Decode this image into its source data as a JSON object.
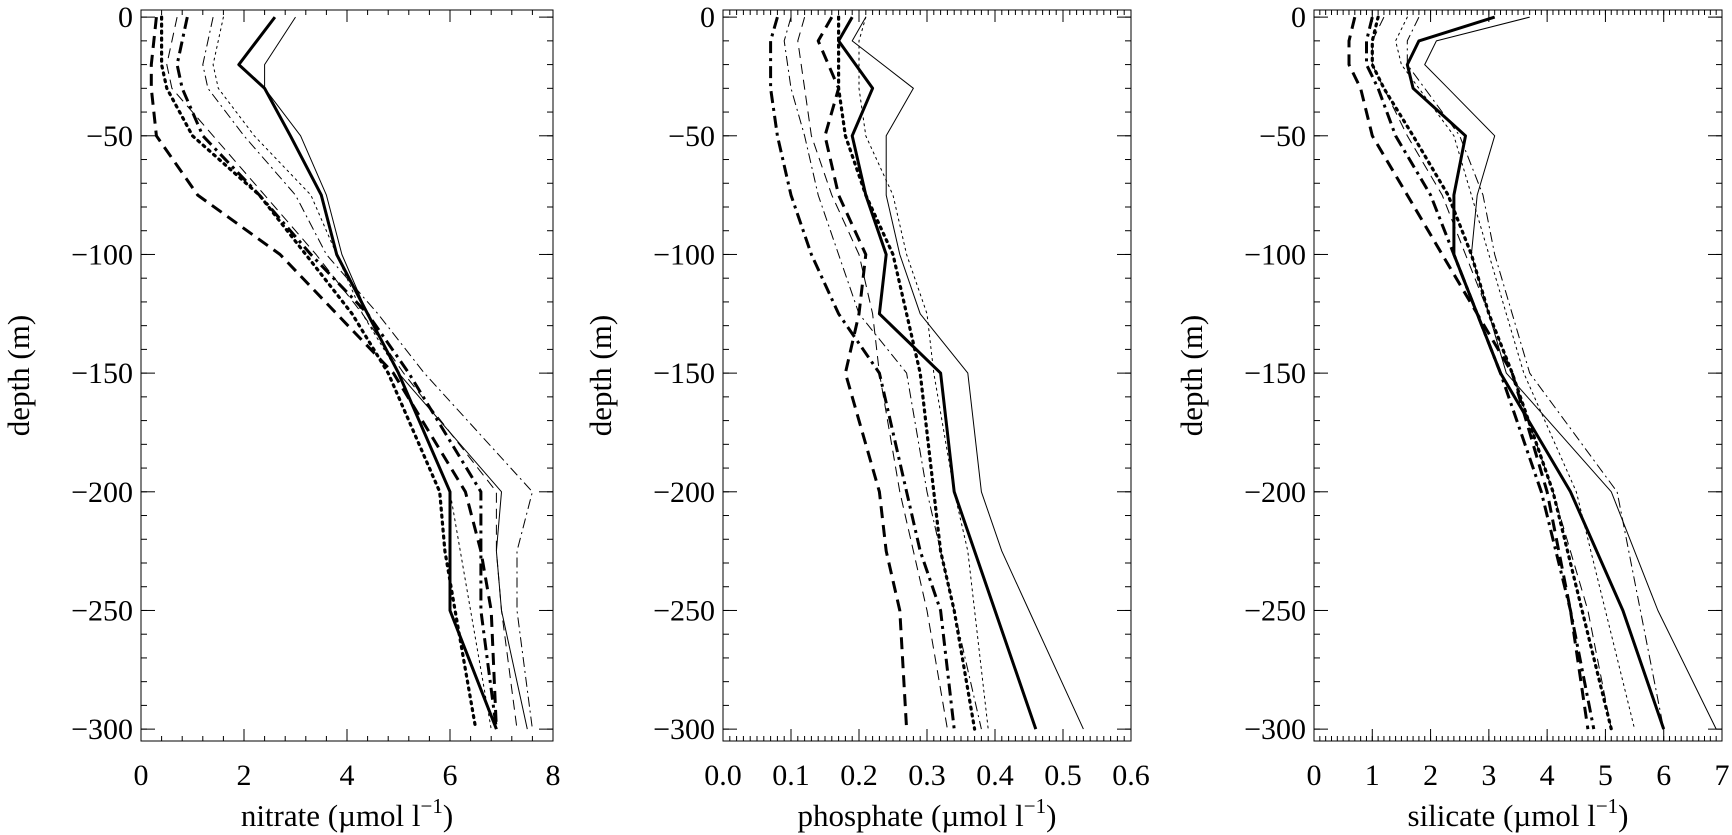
{
  "figure": {
    "panel_count": 3
  },
  "chart_data": [
    {
      "type": "line",
      "xlabel": "nitrate (µmol l",
      "xlabel_sup": "−1",
      "xlabel_close": ")",
      "ylabel": "depth (m)",
      "xlim": [
        0,
        8
      ],
      "ylim": [
        -305,
        3
      ],
      "x_ticks": [
        0,
        2,
        4,
        6,
        8
      ],
      "x_tick_labels": [
        "0",
        "2",
        "4",
        "6",
        "8"
      ],
      "x_minor_step": 0.4,
      "y_ticks": [
        0,
        -50,
        -100,
        -150,
        -200,
        -250,
        -300
      ],
      "y_tick_labels": [
        "0",
        "−50",
        "−100",
        "−150",
        "−200",
        "−250",
        "−300"
      ],
      "grid": false,
      "legend": "none",
      "series": [
        {
          "style": "thick-solid",
          "x": [
            2.6,
            1.9,
            2.4,
            2.9,
            3.5,
            3.8,
            4.4,
            5.0,
            6.0,
            6.0,
            6.0,
            6.9
          ],
          "y": [
            0,
            -20,
            -30,
            -50,
            -75,
            -100,
            -125,
            -150,
            -200,
            -225,
            -250,
            -300
          ]
        },
        {
          "style": "thin-solid",
          "x": [
            3.0,
            2.4,
            2.4,
            3.1,
            3.6,
            3.9,
            4.4,
            5.0,
            7.0,
            6.9,
            7.0,
            7.5
          ],
          "y": [
            0,
            -20,
            -30,
            -50,
            -75,
            -100,
            -125,
            -150,
            -200,
            -225,
            -250,
            -300
          ]
        },
        {
          "style": "thick-dash",
          "x": [
            0.3,
            0.2,
            0.2,
            0.3,
            1.1,
            2.7,
            3.8,
            4.9,
            6.3,
            6.6,
            6.8,
            6.9
          ],
          "y": [
            0,
            -20,
            -30,
            -50,
            -75,
            -100,
            -125,
            -150,
            -200,
            -225,
            -250,
            -300
          ]
        },
        {
          "style": "thin-dash",
          "x": [
            0.7,
            0.5,
            0.6,
            1.4,
            2.4,
            3.4,
            4.3,
            5.1,
            6.9,
            6.9,
            7.0,
            7.3
          ],
          "y": [
            0,
            -20,
            -30,
            -50,
            -75,
            -100,
            -125,
            -150,
            -200,
            -225,
            -250,
            -300
          ]
        },
        {
          "style": "thick-dot",
          "x": [
            0.4,
            0.4,
            0.5,
            1.0,
            2.3,
            3.2,
            4.1,
            4.8,
            5.8,
            5.9,
            6.1,
            6.5
          ],
          "y": [
            0,
            -20,
            -30,
            -50,
            -75,
            -100,
            -125,
            -150,
            -200,
            -225,
            -250,
            -300
          ]
        },
        {
          "style": "thin-dot",
          "x": [
            1.6,
            1.4,
            1.5,
            2.2,
            3.3,
            3.8,
            4.3,
            5.0,
            6.0,
            6.2,
            6.4,
            6.8
          ],
          "y": [
            0,
            -20,
            -30,
            -50,
            -75,
            -100,
            -125,
            -150,
            -200,
            -225,
            -250,
            -300
          ]
        },
        {
          "style": "thick-dashdot",
          "x": [
            0.9,
            0.7,
            0.8,
            1.2,
            2.3,
            3.3,
            4.4,
            5.2,
            6.6,
            6.6,
            6.6,
            6.9
          ],
          "y": [
            0,
            -20,
            -30,
            -50,
            -75,
            -100,
            -125,
            -150,
            -200,
            -225,
            -250,
            -300
          ]
        },
        {
          "style": "thin-dashdot",
          "x": [
            1.4,
            1.2,
            1.3,
            2.0,
            3.0,
            3.6,
            4.6,
            5.5,
            7.6,
            7.3,
            7.3,
            7.6
          ],
          "y": [
            0,
            -20,
            -30,
            -50,
            -75,
            -100,
            -125,
            -150,
            -200,
            -225,
            -250,
            -300
          ]
        }
      ]
    },
    {
      "type": "line",
      "xlabel": "phosphate (µmol l",
      "xlabel_sup": "−1",
      "xlabel_close": ")",
      "ylabel": "depth (m)",
      "xlim": [
        0,
        0.6
      ],
      "ylim": [
        -305,
        3
      ],
      "x_ticks": [
        0,
        0.1,
        0.2,
        0.3,
        0.4,
        0.5,
        0.6
      ],
      "x_tick_labels": [
        "0.0",
        "0.1",
        "0.2",
        "0.3",
        "0.4",
        "0.5",
        "0.6"
      ],
      "x_minor_step": 0.01,
      "y_ticks": [
        0,
        -50,
        -100,
        -150,
        -200,
        -250,
        -300
      ],
      "y_tick_labels": [
        "0",
        "−50",
        "−100",
        "−150",
        "−200",
        "−250",
        "−300"
      ],
      "grid": false,
      "legend": "none",
      "series": [
        {
          "style": "thick-solid",
          "x": [
            0.19,
            0.17,
            0.22,
            0.19,
            0.21,
            0.24,
            0.23,
            0.32,
            0.34,
            0.37,
            0.4,
            0.46
          ],
          "y": [
            0,
            -10,
            -30,
            -50,
            -75,
            -100,
            -125,
            -150,
            -200,
            -225,
            -250,
            -300
          ]
        },
        {
          "style": "thin-solid",
          "x": [
            0.21,
            0.19,
            0.28,
            0.24,
            0.24,
            0.26,
            0.29,
            0.36,
            0.38,
            0.41,
            0.45,
            0.53
          ],
          "y": [
            0,
            -10,
            -30,
            -50,
            -75,
            -100,
            -125,
            -150,
            -200,
            -225,
            -250,
            -300
          ]
        },
        {
          "style": "thick-dash",
          "x": [
            0.16,
            0.14,
            0.17,
            0.15,
            0.17,
            0.21,
            0.2,
            0.18,
            0.23,
            0.24,
            0.26,
            0.27
          ],
          "y": [
            0,
            -10,
            -30,
            -50,
            -75,
            -100,
            -125,
            -150,
            -200,
            -225,
            -250,
            -300
          ]
        },
        {
          "style": "thin-dash",
          "x": [
            0.12,
            0.11,
            0.12,
            0.13,
            0.16,
            0.2,
            0.22,
            0.23,
            0.26,
            0.28,
            0.3,
            0.33
          ],
          "y": [
            0,
            -10,
            -30,
            -50,
            -75,
            -100,
            -125,
            -150,
            -200,
            -225,
            -250,
            -300
          ]
        },
        {
          "style": "thick-dot",
          "x": [
            0.17,
            0.17,
            0.17,
            0.18,
            0.21,
            0.25,
            0.27,
            0.29,
            0.31,
            0.32,
            0.34,
            0.37
          ],
          "y": [
            0,
            -10,
            -30,
            -50,
            -75,
            -100,
            -125,
            -150,
            -200,
            -225,
            -250,
            -300
          ]
        },
        {
          "style": "thin-dot",
          "x": [
            0.21,
            0.2,
            0.2,
            0.21,
            0.25,
            0.27,
            0.3,
            0.31,
            0.34,
            0.36,
            0.37,
            0.39
          ],
          "y": [
            0,
            -10,
            -30,
            -50,
            -75,
            -100,
            -125,
            -150,
            -200,
            -225,
            -250,
            -300
          ]
        },
        {
          "style": "thick-dashdot",
          "x": [
            0.08,
            0.07,
            0.07,
            0.08,
            0.1,
            0.13,
            0.17,
            0.23,
            0.27,
            0.29,
            0.32,
            0.34
          ],
          "y": [
            0,
            -10,
            -30,
            -50,
            -75,
            -100,
            -125,
            -150,
            -200,
            -225,
            -250,
            -300
          ]
        },
        {
          "style": "thin-dashdot",
          "x": [
            0.1,
            0.09,
            0.1,
            0.12,
            0.14,
            0.17,
            0.2,
            0.27,
            0.3,
            0.32,
            0.34,
            0.38
          ],
          "y": [
            0,
            -10,
            -30,
            -50,
            -75,
            -100,
            -125,
            -150,
            -200,
            -225,
            -250,
            -300
          ]
        }
      ]
    },
    {
      "type": "line",
      "xlabel": "silicate (µmol l",
      "xlabel_sup": "−1",
      "xlabel_close": ")",
      "ylabel": "depth (m)",
      "xlim": [
        0,
        7
      ],
      "ylim": [
        -305,
        3
      ],
      "x_ticks": [
        0,
        1,
        2,
        3,
        4,
        5,
        6,
        7
      ],
      "x_tick_labels": [
        "0",
        "1",
        "2",
        "3",
        "4",
        "5",
        "6",
        "7"
      ],
      "x_minor_step": 0.1,
      "y_ticks": [
        0,
        -50,
        -100,
        -150,
        -200,
        -250,
        -300
      ],
      "y_tick_labels": [
        "0",
        "−50",
        "−100",
        "−150",
        "−200",
        "−250",
        "−300"
      ],
      "grid": false,
      "legend": "none",
      "series": [
        {
          "style": "thick-solid",
          "x": [
            3.1,
            1.8,
            1.6,
            1.7,
            2.6,
            2.4,
            2.4,
            2.8,
            3.2,
            4.4,
            5.3,
            6.0
          ],
          "y": [
            0,
            -10,
            -20,
            -30,
            -50,
            -75,
            -100,
            -125,
            -150,
            -200,
            -250,
            -300
          ]
        },
        {
          "style": "thin-solid",
          "x": [
            3.7,
            2.1,
            1.9,
            2.3,
            3.1,
            2.8,
            2.7,
            3.0,
            3.3,
            5.1,
            5.9,
            6.9
          ],
          "y": [
            0,
            -10,
            -20,
            -30,
            -50,
            -75,
            -100,
            -125,
            -150,
            -200,
            -250,
            -300
          ]
        },
        {
          "style": "thick-dash",
          "x": [
            0.7,
            0.6,
            0.6,
            0.8,
            1.0,
            1.6,
            2.2,
            2.8,
            3.4,
            4.0,
            4.4,
            4.7
          ],
          "y": [
            0,
            -10,
            -20,
            -30,
            -50,
            -75,
            -100,
            -125,
            -150,
            -200,
            -250,
            -300
          ]
        },
        {
          "style": "thin-dash",
          "x": [
            1.2,
            1.0,
            1.0,
            1.2,
            1.6,
            2.2,
            2.6,
            3.0,
            3.4,
            4.1,
            4.7,
            5.1
          ],
          "y": [
            0,
            -10,
            -20,
            -30,
            -50,
            -75,
            -100,
            -125,
            -150,
            -200,
            -250,
            -300
          ]
        },
        {
          "style": "thick-dot",
          "x": [
            1.1,
            1.0,
            1.0,
            1.2,
            1.7,
            2.3,
            2.7,
            3.0,
            3.4,
            4.1,
            4.6,
            5.1
          ],
          "y": [
            0,
            -10,
            -20,
            -30,
            -50,
            -75,
            -100,
            -125,
            -150,
            -200,
            -250,
            -300
          ]
        },
        {
          "style": "thin-dot",
          "x": [
            1.6,
            1.4,
            1.5,
            1.8,
            2.4,
            2.7,
            3.0,
            3.3,
            3.6,
            4.5,
            5.0,
            5.5
          ],
          "y": [
            0,
            -10,
            -20,
            -30,
            -50,
            -75,
            -100,
            -125,
            -150,
            -200,
            -250,
            -300
          ]
        },
        {
          "style": "thick-dashdot",
          "x": [
            1.0,
            0.9,
            0.9,
            1.1,
            1.4,
            2.0,
            2.4,
            2.8,
            3.2,
            3.9,
            4.4,
            4.8
          ],
          "y": [
            0,
            -10,
            -20,
            -30,
            -50,
            -75,
            -100,
            -125,
            -150,
            -200,
            -250,
            -300
          ]
        },
        {
          "style": "thin-dashdot",
          "x": [
            1.8,
            1.6,
            1.6,
            1.9,
            2.5,
            2.9,
            3.1,
            3.4,
            3.7,
            5.2,
            5.6,
            6.0
          ],
          "y": [
            0,
            -10,
            -20,
            -30,
            -50,
            -75,
            -100,
            -125,
            -150,
            -200,
            -250,
            -300
          ]
        }
      ]
    }
  ]
}
